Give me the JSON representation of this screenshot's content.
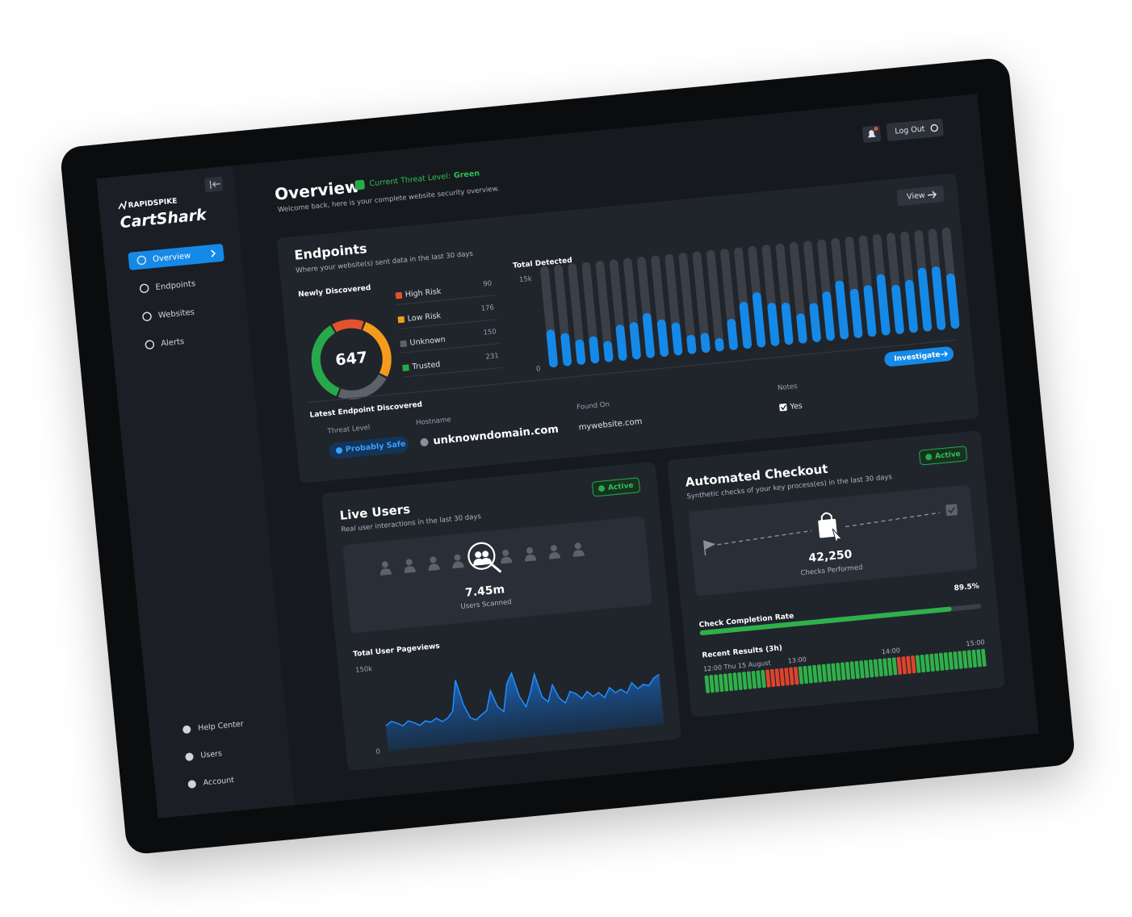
{
  "sidebar": {
    "brand": "RAPIDSPIKE",
    "logo": "CartShark",
    "nav": [
      "Overview",
      "Endpoints",
      "Websites",
      "Alerts"
    ],
    "footer": [
      "Help Center",
      "Users",
      "Account"
    ]
  },
  "header": {
    "title": "Overview",
    "threat_level_label": "Current Threat Level:",
    "threat_level": "Green",
    "subtitle": "Welcome back, here is your complete website security overview.",
    "logout": "Log Out"
  },
  "endpoints": {
    "title": "Endpoints",
    "subtitle": "Where your website(s) sent data in the last 30 days",
    "view": "View",
    "donut": {
      "type": "pie",
      "title": "Newly Discovered",
      "total": 647,
      "categories": [
        "High Risk",
        "Low Risk",
        "Unknown",
        "Trusted"
      ],
      "values": [
        90,
        176,
        150,
        231
      ],
      "colors": [
        "#e2532d",
        "#f59b1c",
        "#5d6169",
        "#27a94b"
      ]
    },
    "bar_chart": {
      "type": "bar",
      "title": "Total Detected",
      "color": "#1589e8",
      "ylim": [
        0,
        15000
      ],
      "yticks": [
        0,
        {
          "value": 15000,
          "label": "15k"
        }
      ],
      "values": [
        6300,
        5500,
        4200,
        4500,
        3500,
        6000,
        6200,
        7500,
        6200,
        5500,
        3200,
        3300,
        2200,
        5200,
        7800,
        9200,
        7200,
        7000,
        5000,
        6500,
        8200,
        9800,
        8200,
        8600,
        10200,
        8200,
        8800,
        10600,
        10600,
        9200
      ]
    },
    "latest": {
      "title": "Latest Endpoint Discovered",
      "columns": [
        "Threat Level",
        "Hostname",
        "Found On",
        "Notes"
      ],
      "row": [
        "Probably Safe",
        "unknowndomain.com",
        "mywebsite.com",
        "Yes"
      ],
      "action": "Investigate"
    }
  },
  "live_users": {
    "title": "Live Users",
    "subtitle": "Real user interactions in the last 30 days",
    "status": "Active",
    "stat": {
      "value": "7.45m",
      "label": "Users Scanned"
    },
    "chart": {
      "type": "area",
      "title": "Total User Pageviews",
      "color": "#1e8fff",
      "ylim": [
        0,
        150000
      ],
      "yticks": [
        0,
        {
          "value": 150000,
          "label": "150k"
        }
      ],
      "values": [
        45000,
        52000,
        48000,
        42000,
        50000,
        46000,
        40000,
        47000,
        44000,
        50000,
        43000,
        48000,
        60000,
        115000,
        70000,
        45000,
        40000,
        48000,
        55000,
        90000,
        60000,
        50000,
        100000,
        118000,
        75000,
        55000,
        80000,
        112000,
        70000,
        60000,
        90000,
        65000,
        55000,
        75000,
        70000,
        60000,
        72000,
        62000,
        68000,
        58000,
        75000,
        65000,
        70000,
        62000,
        80000,
        68000,
        75000,
        72000,
        85000,
        90000
      ]
    }
  },
  "checkout": {
    "title": "Automated Checkout",
    "subtitle": "Synthetic checks of your key process(es) in the last 30 days",
    "status": "Active",
    "stat": {
      "value": "42,250",
      "label": "Checks Performed"
    },
    "completion": {
      "type": "progress",
      "title": "Check Completion Rate",
      "value": 89.5,
      "value_label": "89.5%",
      "xlim": [
        0,
        100
      ],
      "color": "#2fb04a"
    },
    "results": {
      "type": "status-strip",
      "title": "Recent Results (3h)",
      "time_labels": [
        "12:00 Thu 15 August",
        "13:00",
        "14:00",
        "15:00"
      ],
      "values": [
        1,
        1,
        1,
        1,
        1,
        1,
        1,
        1,
        1,
        1,
        1,
        1,
        1,
        0,
        0,
        0,
        0,
        0,
        0,
        0,
        1,
        1,
        1,
        1,
        1,
        1,
        1,
        1,
        1,
        1,
        1,
        1,
        1,
        1,
        1,
        1,
        1,
        1,
        1,
        1,
        1,
        0,
        0,
        0,
        0,
        1,
        1,
        1,
        1,
        1,
        1,
        1,
        1,
        1,
        1,
        1,
        1,
        1,
        1,
        1
      ],
      "colors": [
        "#e0432c",
        "#2fb04a"
      ]
    }
  }
}
